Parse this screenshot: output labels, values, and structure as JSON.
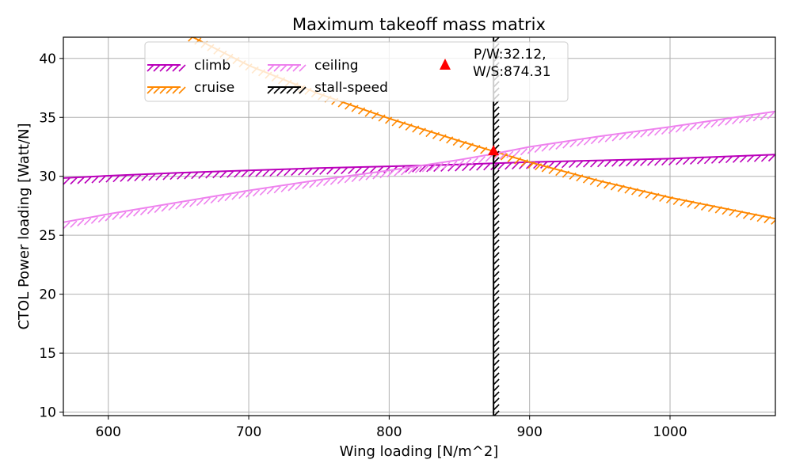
{
  "chart_data": {
    "type": "line",
    "title": "Maximum takeoff mass matrix",
    "xlabel": "Wing loading [N/m^2]",
    "ylabel": "CTOL Power loading [Watt/N]",
    "xlim": [
      568,
      1075
    ],
    "ylim": [
      9.7,
      41.8
    ],
    "x_ticks": [
      600,
      700,
      800,
      900,
      1000
    ],
    "y_ticks": [
      10,
      15,
      20,
      25,
      30,
      35,
      40
    ],
    "grid": true,
    "legend_position": "top",
    "series": [
      {
        "name": "climb",
        "color": "#bb00bb",
        "x": [
          568,
          600,
          650,
          700,
          750,
          800,
          850,
          874.31,
          900,
          950,
          1000,
          1075
        ],
        "y": [
          29.85,
          30.05,
          30.3,
          30.5,
          30.7,
          30.85,
          31.0,
          31.1,
          31.2,
          31.35,
          31.5,
          31.85
        ]
      },
      {
        "name": "cruise",
        "color": "#ff8800",
        "x": [
          657,
          700,
          750,
          800,
          850,
          874.31,
          900,
          950,
          1000,
          1075
        ],
        "y": [
          42.0,
          39.4,
          37.0,
          34.9,
          33.0,
          32.12,
          31.2,
          29.6,
          28.2,
          26.4
        ]
      },
      {
        "name": "ceiling",
        "color": "#ee82ee",
        "x": [
          568,
          600,
          650,
          700,
          750,
          800,
          850,
          874.31,
          900,
          950,
          1000,
          1075
        ],
        "y": [
          26.1,
          26.8,
          27.8,
          28.8,
          29.7,
          30.5,
          31.4,
          31.9,
          32.5,
          33.4,
          34.2,
          35.5
        ]
      },
      {
        "name": "stall-speed",
        "color": "#000000",
        "x": [
          874.31,
          874.31
        ],
        "y": [
          9.7,
          41.8
        ]
      }
    ],
    "design_point": {
      "label_line1": "P/W:32.12,",
      "label_line2": "W/S:874.31",
      "x": 874.31,
      "y": 32.12,
      "color": "#ff0000",
      "marker": "triangle"
    }
  }
}
